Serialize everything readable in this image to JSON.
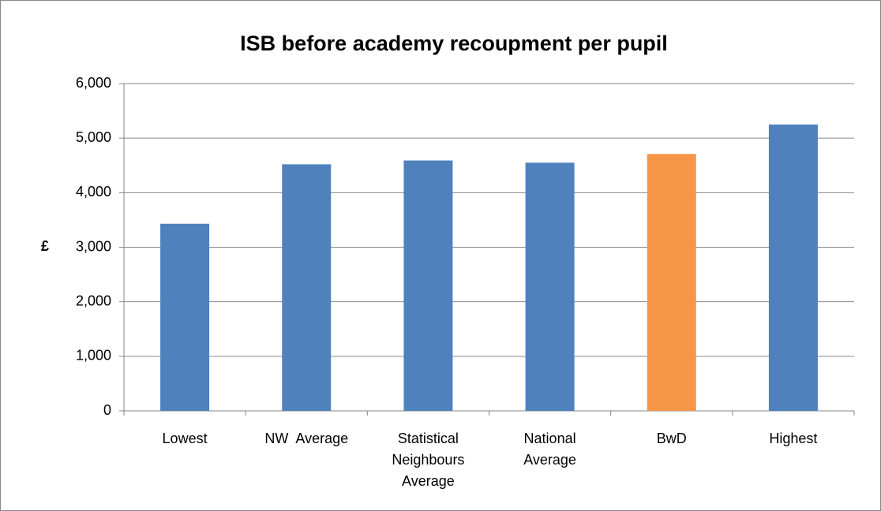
{
  "chart_data": {
    "type": "bar",
    "title": "ISB before academy recoupment per pupil",
    "y_label": "£",
    "categories": [
      "Lowest",
      "NW  Average",
      "Statistical Neighbours Average",
      "National Average",
      "BwD",
      "Highest"
    ],
    "values": [
      3430,
      4520,
      4590,
      4550,
      4710,
      5250
    ],
    "colors": [
      "#4f81bd",
      "#4f81bd",
      "#4f81bd",
      "#4f81bd",
      "#f79646",
      "#4f81bd"
    ],
    "ylim": [
      0,
      6000
    ],
    "yticks": [
      0,
      {
        "value": 1000,
        "label": "1,000"
      },
      {
        "value": 2000,
        "label": "2,000"
      },
      {
        "value": 3000,
        "label": "3,000"
      },
      {
        "value": 4000,
        "label": "4,000"
      },
      {
        "value": 5000,
        "label": "5,000"
      },
      {
        "value": 6000,
        "label": "6,000"
      }
    ],
    "grid": true
  }
}
